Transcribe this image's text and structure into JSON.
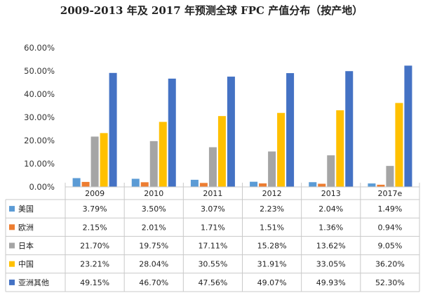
{
  "chart_data": {
    "type": "bar",
    "title": "2009-2013 年及 2017 年预测全球 FPC 产值分布（按产地）",
    "categories": [
      "2009",
      "2010",
      "2011",
      "2012",
      "2013",
      "2017e"
    ],
    "ylim": [
      0,
      60
    ],
    "yticks": [
      "0.00%",
      "10.00%",
      "20.00%",
      "30.00%",
      "40.00%",
      "50.00%",
      "60.00%"
    ],
    "grid": false,
    "legend": "data-table",
    "series": [
      {
        "name": "美国",
        "color": "#5B9BD5",
        "values": [
          3.79,
          3.5,
          3.07,
          2.23,
          2.04,
          1.49
        ],
        "labels": [
          "3.79%",
          "3.50%",
          "3.07%",
          "2.23%",
          "2.04%",
          "1.49%"
        ]
      },
      {
        "name": "欧洲",
        "color": "#ED7D31",
        "values": [
          2.15,
          2.01,
          1.71,
          1.51,
          1.36,
          0.94
        ],
        "labels": [
          "2.15%",
          "2.01%",
          "1.71%",
          "1.51%",
          "1.36%",
          "0.94%"
        ]
      },
      {
        "name": "日本",
        "color": "#A5A5A5",
        "values": [
          21.7,
          19.75,
          17.11,
          15.28,
          13.62,
          9.05
        ],
        "labels": [
          "21.70%",
          "19.75%",
          "17.11%",
          "15.28%",
          "13.62%",
          "9.05%"
        ]
      },
      {
        "name": "中国",
        "color": "#FFC000",
        "values": [
          23.21,
          28.04,
          30.55,
          31.91,
          33.05,
          36.2
        ],
        "labels": [
          "23.21%",
          "28.04%",
          "30.55%",
          "31.91%",
          "33.05%",
          "36.20%"
        ]
      },
      {
        "name": "亚洲其他",
        "color": "#4472C4",
        "values": [
          49.15,
          46.7,
          47.56,
          49.07,
          49.93,
          52.3
        ],
        "labels": [
          "49.15%",
          "46.70%",
          "47.56%",
          "49.07%",
          "49.93%",
          "52.30%"
        ]
      }
    ]
  }
}
